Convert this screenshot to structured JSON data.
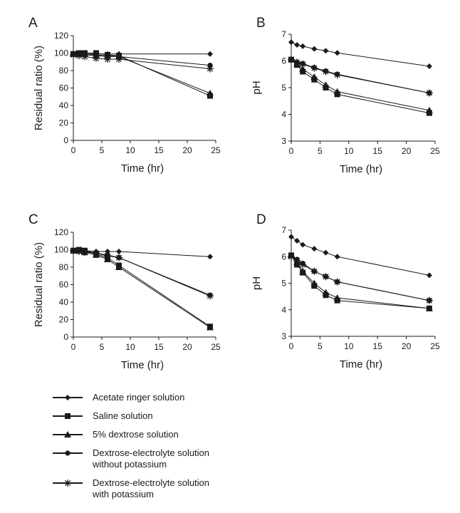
{
  "colors": {
    "ink": "#1a1a1a"
  },
  "legend": [
    {
      "label": "Acetate ringer solution",
      "marker": "diamond"
    },
    {
      "label": "Saline solution",
      "marker": "square"
    },
    {
      "label": "5% dextrose solution",
      "marker": "triangle"
    },
    {
      "label": "Dextrose-electrolyte solution\nwithout potassium",
      "marker": "circle"
    },
    {
      "label": "Dextrose-electrolyte solution\nwith potassium",
      "marker": "asterisk"
    }
  ],
  "chart_data": [
    {
      "panel": "A",
      "type": "line",
      "xlabel": "Time (hr)",
      "ylabel": "Residual ratio (%)",
      "xlim": [
        0,
        25
      ],
      "ylim": [
        0,
        120
      ],
      "xticks": [
        "0",
        "5",
        "10",
        "15",
        "20",
        "25"
      ],
      "yticks": [
        "0",
        "20",
        "40",
        "60",
        "80",
        "100",
        "120"
      ],
      "series": [
        {
          "name": "Acetate ringer solution",
          "marker": "diamond",
          "x": [
            0,
            1,
            2,
            4,
            6,
            8,
            24
          ],
          "y": [
            99,
            99,
            99,
            99,
            99,
            99,
            99
          ]
        },
        {
          "name": "Saline solution",
          "marker": "square",
          "x": [
            0,
            1,
            2,
            4,
            6,
            8,
            24
          ],
          "y": [
            99,
            100,
            100,
            100,
            98,
            97,
            51
          ]
        },
        {
          "name": "5% dextrose solution",
          "marker": "triangle",
          "x": [
            0,
            1,
            2,
            4,
            6,
            8,
            24
          ],
          "y": [
            99,
            99,
            99,
            98,
            97,
            96,
            54
          ]
        },
        {
          "name": "Dextrose-electrolyte solution without potassium",
          "marker": "circle",
          "x": [
            0,
            1,
            2,
            4,
            6,
            8,
            24
          ],
          "y": [
            99,
            99,
            98,
            97,
            96,
            96,
            86
          ]
        },
        {
          "name": "Dextrose-electrolyte solution with potassium",
          "marker": "asterisk",
          "x": [
            0,
            1,
            2,
            4,
            6,
            8,
            24
          ],
          "y": [
            98,
            97,
            96,
            94,
            93,
            93,
            82
          ]
        }
      ]
    },
    {
      "panel": "B",
      "type": "line",
      "xlabel": "Time (hr)",
      "ylabel": "pH",
      "xlim": [
        0,
        25
      ],
      "ylim": [
        3,
        7
      ],
      "xticks": [
        "0",
        "5",
        "10",
        "15",
        "20",
        "25"
      ],
      "yticks": [
        "3",
        "4",
        "5",
        "6",
        "7"
      ],
      "series": [
        {
          "name": "Acetate ringer solution",
          "marker": "diamond",
          "x": [
            0,
            1,
            2,
            4,
            6,
            8,
            24
          ],
          "y": [
            6.7,
            6.6,
            6.55,
            6.45,
            6.38,
            6.3,
            5.8
          ]
        },
        {
          "name": "Saline solution",
          "marker": "square",
          "x": [
            0,
            1,
            2,
            4,
            6,
            8,
            24
          ],
          "y": [
            6.05,
            5.85,
            5.6,
            5.3,
            5.0,
            4.75,
            4.05
          ]
        },
        {
          "name": "5% dextrose solution",
          "marker": "triangle",
          "x": [
            0,
            1,
            2,
            4,
            6,
            8,
            24
          ],
          "y": [
            6.05,
            5.9,
            5.7,
            5.4,
            5.1,
            4.85,
            4.15
          ]
        },
        {
          "name": "Dextrose-electrolyte solution without potassium",
          "marker": "circle",
          "x": [
            0,
            1,
            2,
            4,
            6,
            8,
            24
          ],
          "y": [
            6.05,
            5.95,
            5.9,
            5.75,
            5.62,
            5.5,
            4.8
          ]
        },
        {
          "name": "Dextrose-electrolyte solution with potassium",
          "marker": "asterisk",
          "x": [
            0,
            1,
            2,
            4,
            6,
            8,
            24
          ],
          "y": [
            6.05,
            5.95,
            5.88,
            5.73,
            5.6,
            5.48,
            4.8
          ]
        }
      ]
    },
    {
      "panel": "C",
      "type": "line",
      "xlabel": "Time (hr)",
      "ylabel": "Residual ratio (%)",
      "xlim": [
        0,
        25
      ],
      "ylim": [
        0,
        120
      ],
      "xticks": [
        "0",
        "5",
        "10",
        "15",
        "20",
        "25"
      ],
      "yticks": [
        "0",
        "20",
        "40",
        "60",
        "80",
        "100",
        "120"
      ],
      "series": [
        {
          "name": "Acetate ringer solution",
          "marker": "diamond",
          "x": [
            0,
            1,
            2,
            4,
            6,
            8,
            24
          ],
          "y": [
            99,
            99,
            99,
            98,
            98,
            98,
            92
          ]
        },
        {
          "name": "Saline solution",
          "marker": "square",
          "x": [
            0,
            1,
            2,
            4,
            6,
            8,
            24
          ],
          "y": [
            99,
            100,
            99,
            95,
            91,
            82,
            12
          ]
        },
        {
          "name": "5% dextrose solution",
          "marker": "triangle",
          "x": [
            0,
            1,
            2,
            4,
            6,
            8,
            24
          ],
          "y": [
            99,
            99,
            97,
            94,
            89,
            80,
            11
          ]
        },
        {
          "name": "Dextrose-electrolyte solution without potassium",
          "marker": "circle",
          "x": [
            0,
            1,
            2,
            4,
            6,
            8,
            24
          ],
          "y": [
            99,
            99,
            99,
            96,
            94,
            91,
            48
          ]
        },
        {
          "name": "Dextrose-electrolyte solution with potassium",
          "marker": "asterisk",
          "x": [
            0,
            1,
            2,
            4,
            6,
            8,
            24
          ],
          "y": [
            99,
            98,
            97,
            96,
            93,
            91,
            47
          ]
        }
      ]
    },
    {
      "panel": "D",
      "type": "line",
      "xlabel": "Time (hr)",
      "ylabel": "pH",
      "xlim": [
        0,
        25
      ],
      "ylim": [
        3,
        7
      ],
      "xticks": [
        "0",
        "5",
        "10",
        "15",
        "20",
        "25"
      ],
      "yticks": [
        "3",
        "4",
        "5",
        "6",
        "7"
      ],
      "series": [
        {
          "name": "Acetate ringer solution",
          "marker": "diamond",
          "x": [
            0,
            1,
            2,
            4,
            6,
            8,
            24
          ],
          "y": [
            6.75,
            6.6,
            6.45,
            6.3,
            6.15,
            6.0,
            5.3
          ]
        },
        {
          "name": "Saline solution",
          "marker": "square",
          "x": [
            0,
            1,
            2,
            4,
            6,
            8,
            24
          ],
          "y": [
            6.05,
            5.7,
            5.4,
            4.9,
            4.55,
            4.35,
            4.05
          ]
        },
        {
          "name": "5% dextrose solution",
          "marker": "triangle",
          "x": [
            0,
            1,
            2,
            4,
            6,
            8,
            24
          ],
          "y": [
            6.05,
            5.8,
            5.45,
            5.0,
            4.65,
            4.45,
            4.05
          ]
        },
        {
          "name": "Dextrose-electrolyte solution without potassium",
          "marker": "circle",
          "x": [
            0,
            1,
            2,
            4,
            6,
            8,
            24
          ],
          "y": [
            6.05,
            5.9,
            5.75,
            5.45,
            5.25,
            5.05,
            4.35
          ]
        },
        {
          "name": "Dextrose-electrolyte solution with potassium",
          "marker": "asterisk",
          "x": [
            0,
            1,
            2,
            4,
            6,
            8,
            24
          ],
          "y": [
            6.0,
            5.85,
            5.7,
            5.45,
            5.25,
            5.05,
            4.35
          ]
        }
      ]
    }
  ]
}
